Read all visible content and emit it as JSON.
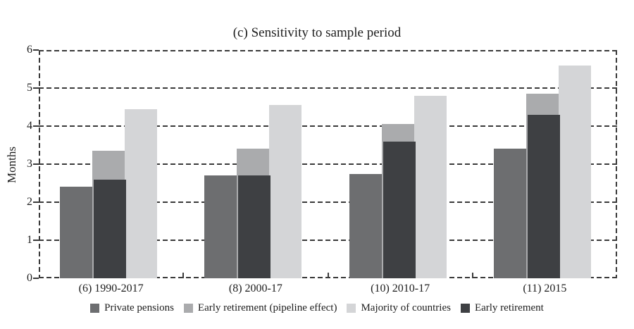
{
  "chart_data": {
    "type": "bar",
    "title": "(c) Sensitivity to sample period",
    "ylabel": "Months",
    "ylim": [
      0,
      6
    ],
    "yticks": [
      0,
      1,
      2,
      3,
      4,
      5,
      6
    ],
    "grid": "horizontal dashed black lines at each integer; dashed rectangular plot frame",
    "legend_position": "bottom",
    "categories": [
      "(6) 1990-2017",
      "(8) 2000-17",
      "(10) 2010-17",
      "(11) 2015"
    ],
    "series": [
      {
        "name": "Private pensions",
        "color": "#6d6e70",
        "slot": 0,
        "overlay": false,
        "values": [
          2.4,
          2.7,
          2.75,
          3.4
        ]
      },
      {
        "name": "Early retirement (pipeline effect)",
        "color": "#aaabad",
        "slot": 1,
        "overlay": false,
        "values": [
          3.35,
          3.4,
          4.05,
          4.85
        ]
      },
      {
        "name": "Majority of countries",
        "color": "#d4d5d7",
        "slot": 2,
        "overlay": false,
        "values": [
          4.45,
          4.55,
          4.8,
          5.6
        ]
      },
      {
        "name": "Early retirement",
        "color": "#3e4043",
        "slot": 1,
        "overlay": true,
        "values": [
          2.6,
          2.7,
          3.6,
          4.3
        ]
      }
    ],
    "axis_color": "#3a3a3a"
  }
}
